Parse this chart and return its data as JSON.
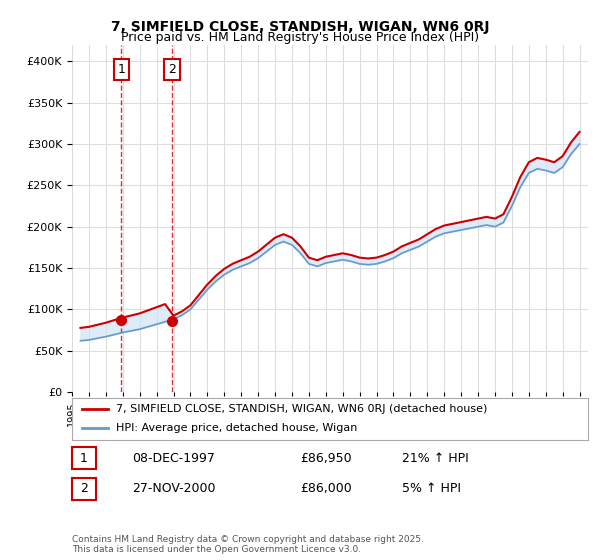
{
  "title1": "7, SIMFIELD CLOSE, STANDISH, WIGAN, WN6 0RJ",
  "title2": "Price paid vs. HM Land Registry's House Price Index (HPI)",
  "legend_label1": "7, SIMFIELD CLOSE, STANDISH, WIGAN, WN6 0RJ (detached house)",
  "legend_label2": "HPI: Average price, detached house, Wigan",
  "sale1_label": "1",
  "sale1_date": "08-DEC-1997",
  "sale1_price": "£86,950",
  "sale1_hpi": "21% ↑ HPI",
  "sale1_year": 1997.92,
  "sale1_value": 86950,
  "sale2_label": "2",
  "sale2_date": "27-NOV-2000",
  "sale2_price": "£86,000",
  "sale2_hpi": "5% ↑ HPI",
  "sale2_year": 2000.9,
  "sale2_value": 86000,
  "ylim": [
    0,
    420000
  ],
  "yticks": [
    0,
    50000,
    100000,
    150000,
    200000,
    250000,
    300000,
    350000,
    400000
  ],
  "copyright_text": "Contains HM Land Registry data © Crown copyright and database right 2025.\nThis data is licensed under the Open Government Licence v3.0.",
  "line1_color": "#cc0000",
  "line2_color": "#6699cc",
  "shade_color": "#d0e4f7",
  "marker_color": "#cc0000",
  "bg_color": "#ffffff",
  "grid_color": "#dddddd",
  "vline_color": "#cc0000",
  "box_color": "#cc0000"
}
